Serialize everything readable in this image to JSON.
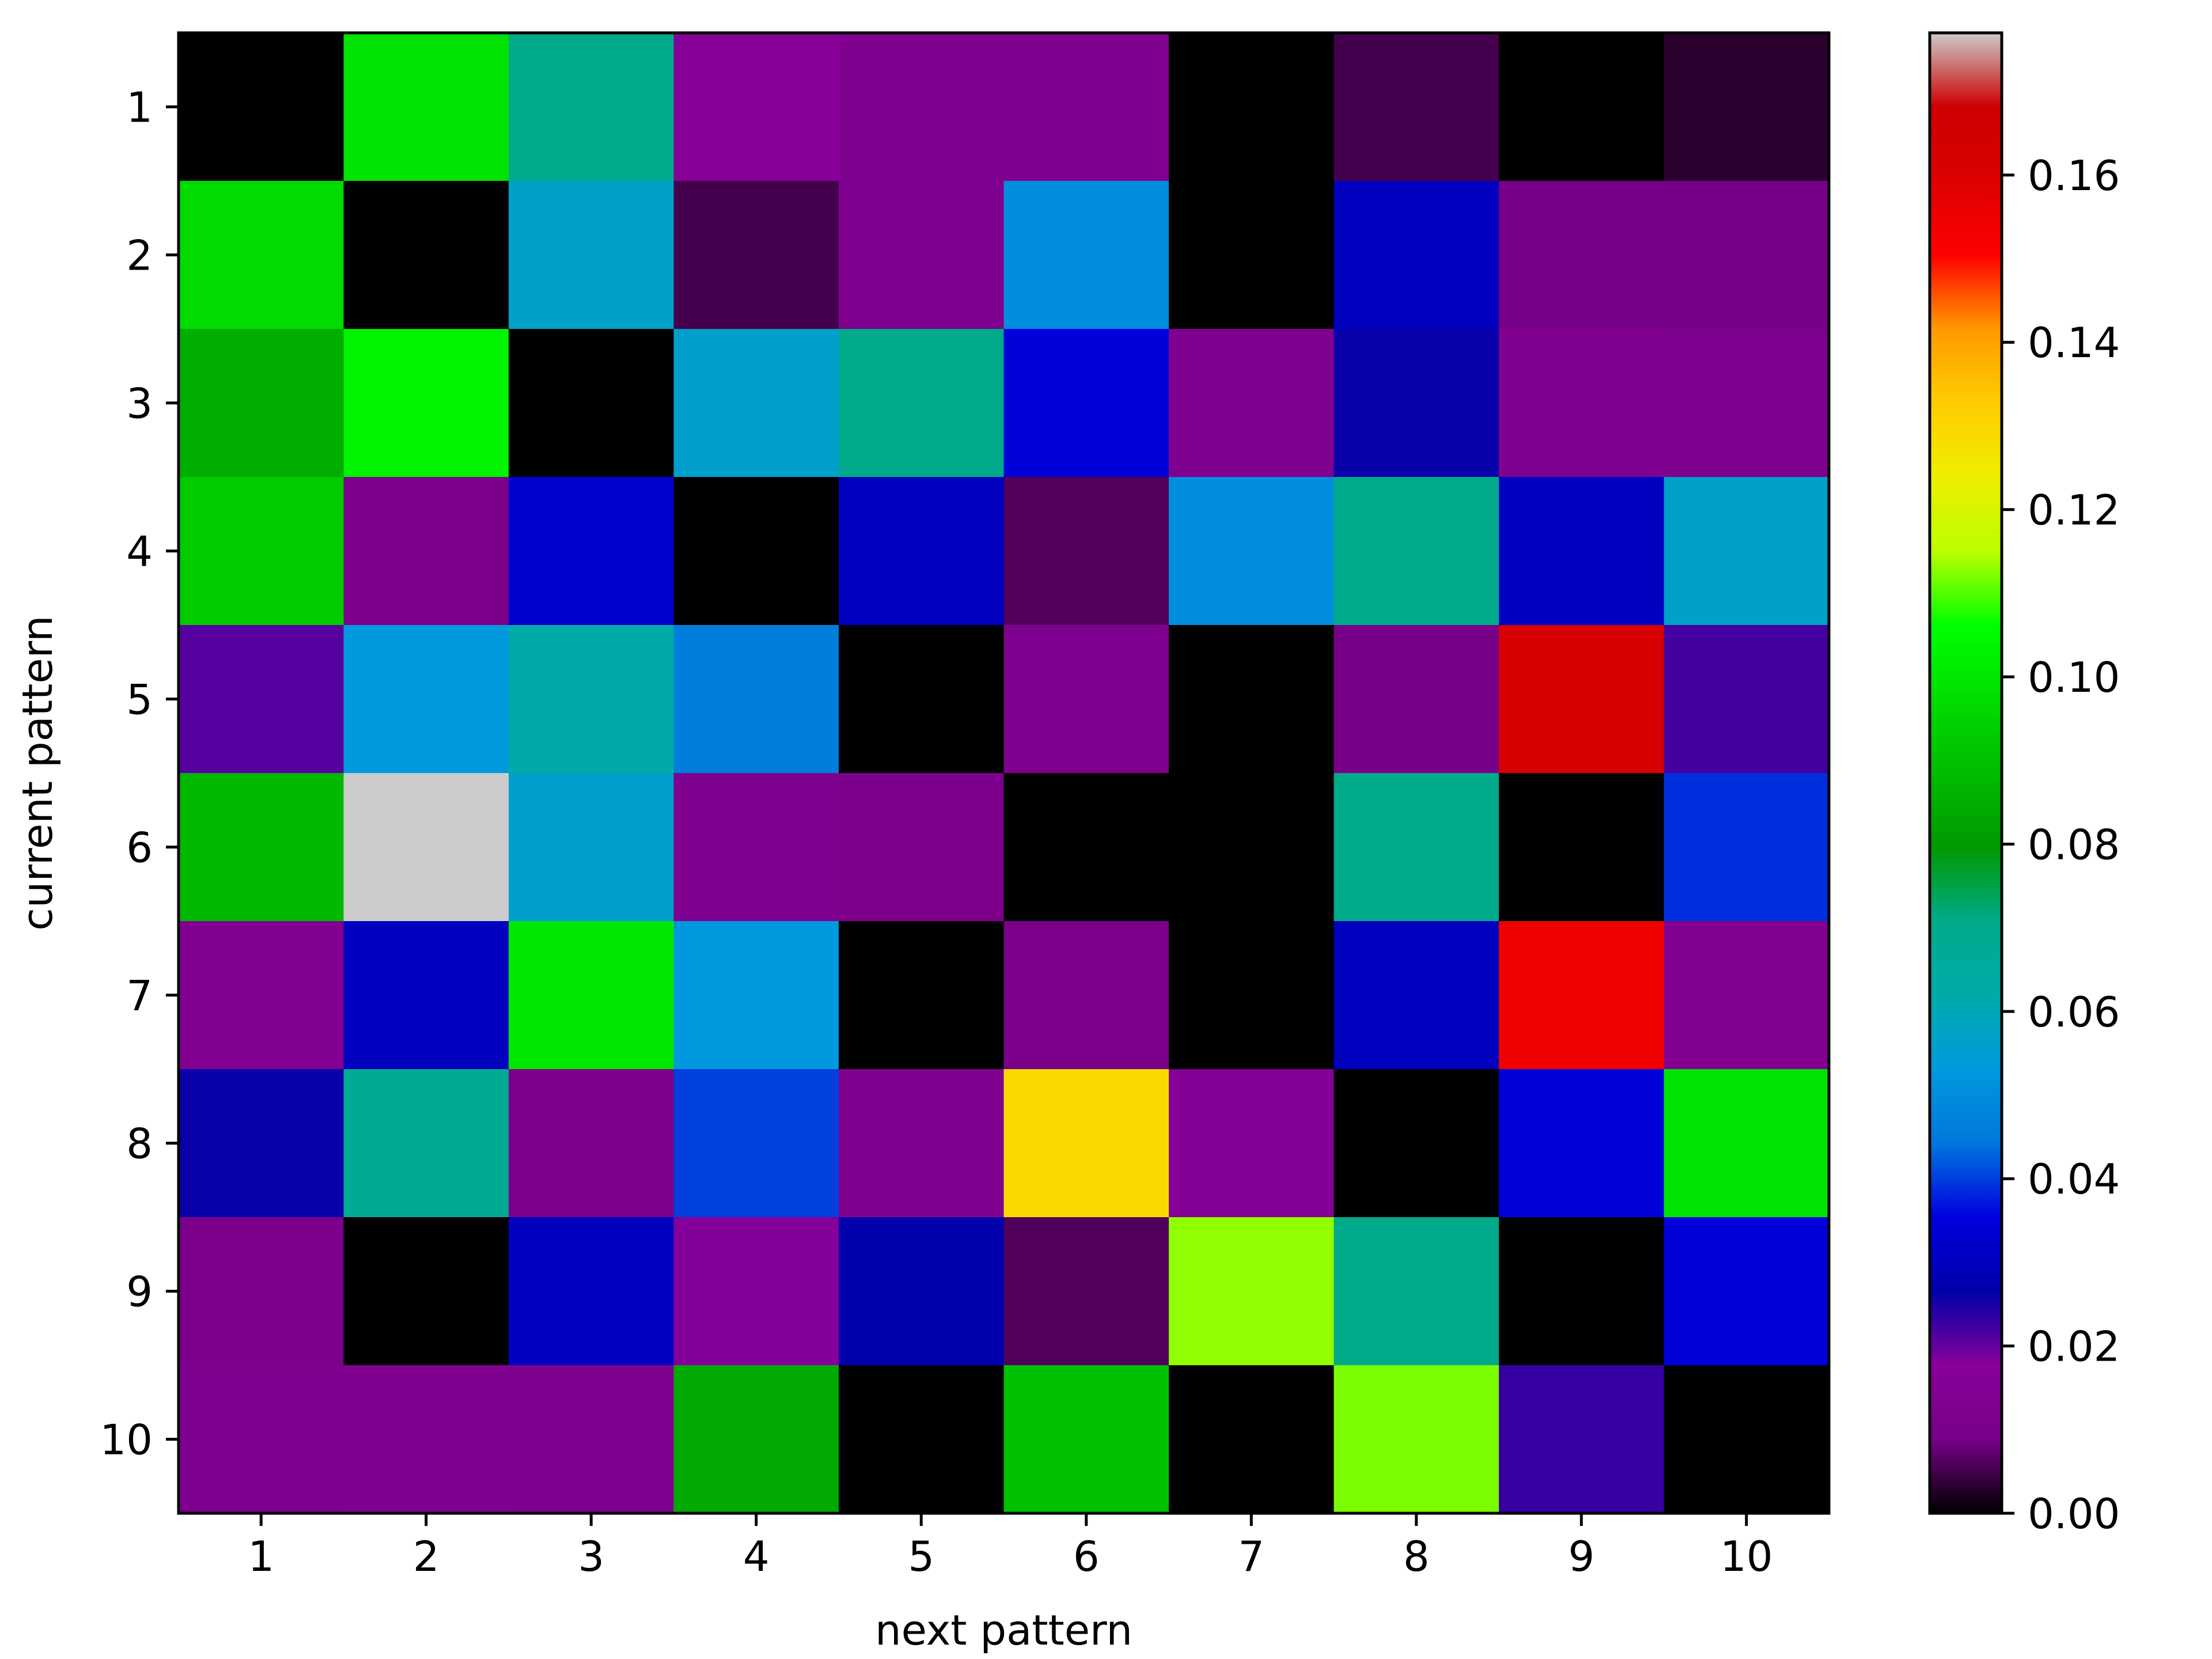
{
  "chart_data": {
    "type": "heatmap",
    "title": "",
    "xlabel": "next pattern",
    "ylabel": "current pattern",
    "x_categories": [
      "1",
      "2",
      "3",
      "4",
      "5",
      "6",
      "7",
      "8",
      "9",
      "10"
    ],
    "y_categories": [
      "1",
      "2",
      "3",
      "4",
      "5",
      "6",
      "7",
      "8",
      "9",
      "10"
    ],
    "values": [
      [
        0.0,
        0.099,
        0.07,
        0.017,
        0.013,
        0.013,
        0.0,
        0.005,
        0.0,
        0.003
      ],
      [
        0.097,
        0.0,
        0.057,
        0.005,
        0.013,
        0.05,
        0.0,
        0.03,
        0.009,
        0.009
      ],
      [
        0.085,
        0.103,
        0.0,
        0.056,
        0.07,
        0.035,
        0.013,
        0.026,
        0.013,
        0.012
      ],
      [
        0.093,
        0.011,
        0.033,
        0.0,
        0.03,
        0.006,
        0.05,
        0.07,
        0.03,
        0.057
      ],
      [
        0.021,
        0.053,
        0.063,
        0.046,
        0.0,
        0.012,
        0.0,
        0.009,
        0.162,
        0.022
      ],
      [
        0.088,
        0.177,
        0.056,
        0.013,
        0.011,
        0.0,
        0.0,
        0.07,
        0.0,
        0.039
      ],
      [
        0.014,
        0.03,
        0.1,
        0.053,
        0.0,
        0.01,
        0.0,
        0.03,
        0.154,
        0.014
      ],
      [
        0.026,
        0.068,
        0.011,
        0.04,
        0.013,
        0.129,
        0.016,
        0.0,
        0.035,
        0.099
      ],
      [
        0.011,
        0.0,
        0.03,
        0.018,
        0.027,
        0.006,
        0.113,
        0.07,
        0.0,
        0.035
      ],
      [
        0.012,
        0.013,
        0.012,
        0.084,
        0.0,
        0.09,
        0.0,
        0.112,
        0.023,
        0.0
      ]
    ],
    "colorscale": "nipy_spectral",
    "zlim": [
      0,
      0.177
    ],
    "colorbar_ticks": [
      "0.00",
      "0.02",
      "0.04",
      "0.06",
      "0.08",
      "0.10",
      "0.12",
      "0.14",
      "0.16"
    ],
    "grid": false
  }
}
